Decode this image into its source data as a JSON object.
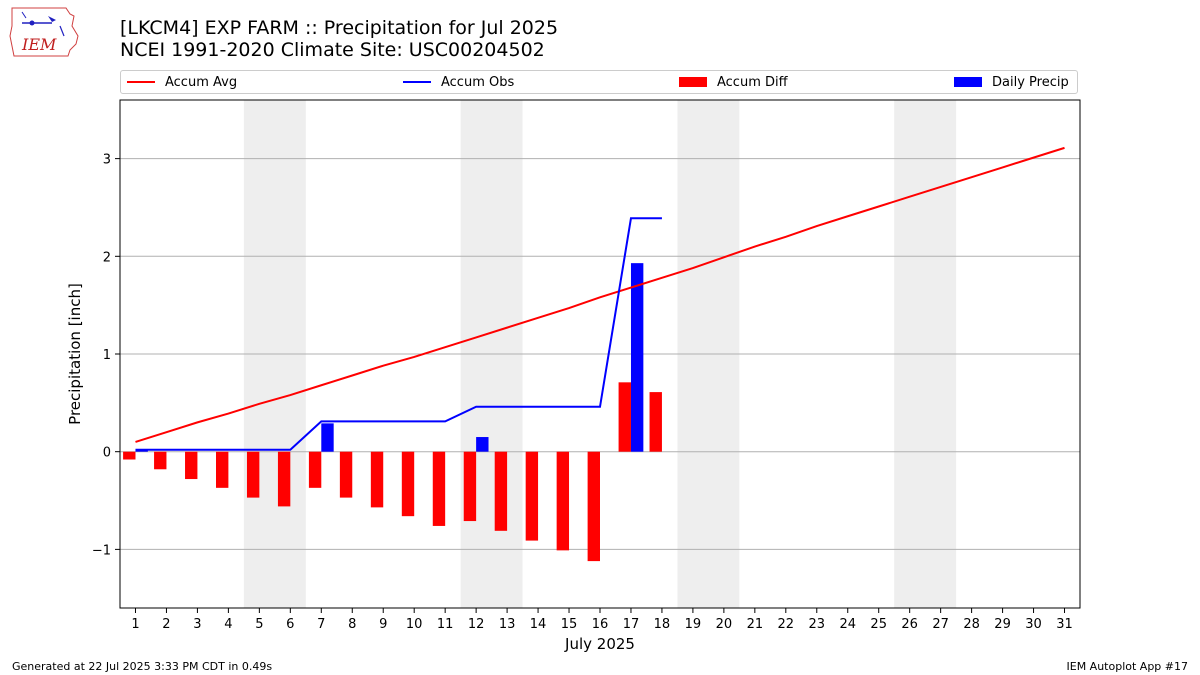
{
  "chart_data": {
    "type": "bar",
    "title": "[LKCM4] EXP FARM :: Precipitation for Jul 2025",
    "subtitle": "NCEI 1991-2020 Climate Site: USC00204502",
    "xlabel": "July 2025",
    "ylabel": "Precipitation [inch]",
    "ylim": [
      -1.6,
      3.6
    ],
    "xlim": [
      0.5,
      31.5
    ],
    "yticks": [
      -1,
      0,
      1,
      2,
      3
    ],
    "ytick_labels": [
      "−1",
      "0",
      "1",
      "2",
      "3"
    ],
    "categories": [
      "1",
      "2",
      "3",
      "4",
      "5",
      "6",
      "7",
      "8",
      "9",
      "10",
      "11",
      "12",
      "13",
      "14",
      "15",
      "16",
      "17",
      "18",
      "19",
      "20",
      "21",
      "22",
      "23",
      "24",
      "25",
      "26",
      "27",
      "28",
      "29",
      "30",
      "31"
    ],
    "grid": "horizontal",
    "legend_position": "top",
    "weekend_shading": [
      [
        4.5,
        6.5
      ],
      [
        11.5,
        13.5
      ],
      [
        18.5,
        20.5
      ],
      [
        25.5,
        27.5
      ]
    ],
    "series": [
      {
        "name": "Accum Avg",
        "kind": "line",
        "color": "#ff0000",
        "x": [
          1,
          2,
          3,
          4,
          5,
          6,
          7,
          8,
          9,
          10,
          11,
          12,
          13,
          14,
          15,
          16,
          17,
          18,
          19,
          20,
          21,
          22,
          23,
          24,
          25,
          26,
          27,
          28,
          29,
          30,
          31
        ],
        "values": [
          0.1,
          0.2,
          0.3,
          0.39,
          0.49,
          0.58,
          0.68,
          0.78,
          0.88,
          0.97,
          1.07,
          1.17,
          1.27,
          1.37,
          1.47,
          1.58,
          1.68,
          1.78,
          1.88,
          1.99,
          2.1,
          2.2,
          2.31,
          2.41,
          2.51,
          2.61,
          2.71,
          2.81,
          2.91,
          3.01,
          3.11
        ]
      },
      {
        "name": "Accum Obs",
        "kind": "line",
        "color": "#0000ff",
        "x": [
          1,
          2,
          3,
          4,
          5,
          6,
          7,
          8,
          9,
          10,
          11,
          12,
          13,
          14,
          15,
          16,
          17,
          18
        ],
        "values": [
          0.02,
          0.02,
          0.02,
          0.02,
          0.02,
          0.02,
          0.31,
          0.31,
          0.31,
          0.31,
          0.31,
          0.46,
          0.46,
          0.46,
          0.46,
          0.46,
          2.39,
          2.39
        ]
      },
      {
        "name": "Accum Diff",
        "kind": "bar",
        "color": "#ff0000",
        "x": [
          1,
          2,
          3,
          4,
          5,
          6,
          7,
          8,
          9,
          10,
          11,
          12,
          13,
          14,
          15,
          16,
          17,
          18
        ],
        "values": [
          -0.08,
          -0.18,
          -0.28,
          -0.37,
          -0.47,
          -0.56,
          -0.37,
          -0.47,
          -0.57,
          -0.66,
          -0.76,
          -0.71,
          -0.81,
          -0.91,
          -1.01,
          -1.12,
          0.71,
          0.61
        ]
      },
      {
        "name": "Daily Precip",
        "kind": "bar",
        "color": "#0000ff",
        "x": [
          1,
          7,
          12,
          17
        ],
        "values": [
          0.02,
          0.29,
          0.15,
          1.93
        ]
      }
    ]
  },
  "logo": {
    "text": "IEM"
  },
  "footer": {
    "left": "Generated at 22 Jul 2025 3:33 PM CDT in 0.49s",
    "right": "IEM Autoplot App #17"
  }
}
